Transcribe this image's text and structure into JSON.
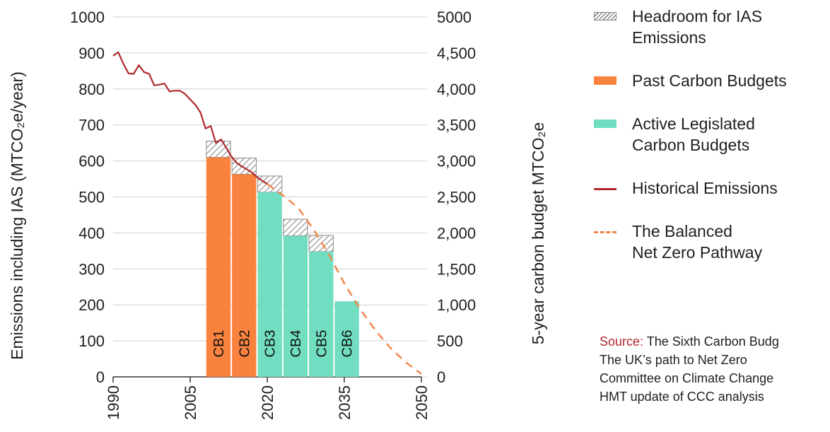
{
  "chart_data": {
    "type": "bar",
    "left_axis": {
      "label": "Emissions including IAS (MTCO₂e/year)",
      "ticks": [
        0,
        100,
        200,
        300,
        400,
        500,
        600,
        700,
        800,
        900,
        1000
      ],
      "range": [
        0,
        1000
      ]
    },
    "right_axis": {
      "label": "5-year carbon budget MTCO₂e",
      "tick_labels": [
        "0",
        "500",
        "1,000",
        "1,500",
        "2,000",
        "2,500",
        "3,000",
        "3,500",
        "4,000",
        "4,500",
        "5000"
      ],
      "range": [
        0,
        5000
      ]
    },
    "x_axis": {
      "range": [
        1990,
        2050
      ],
      "ticks": [
        "1990",
        "2005",
        "2020",
        "2035",
        "2050"
      ]
    },
    "bars": [
      {
        "label": "CB1",
        "start": 2008,
        "end": 2013,
        "budget_value": 610,
        "headroom_value": 655,
        "category": "past"
      },
      {
        "label": "CB2",
        "start": 2013,
        "end": 2018,
        "budget_value": 563,
        "headroom_value": 608,
        "category": "past"
      },
      {
        "label": "CB3",
        "start": 2018,
        "end": 2023,
        "budget_value": 513,
        "headroom_value": 558,
        "category": "active"
      },
      {
        "label": "CB4",
        "start": 2023,
        "end": 2028,
        "budget_value": 392,
        "headroom_value": 438,
        "category": "active"
      },
      {
        "label": "CB5",
        "start": 2028,
        "end": 2033,
        "budget_value": 348,
        "headroom_value": 393,
        "category": "active"
      },
      {
        "label": "CB6",
        "start": 2033,
        "end": 2038,
        "budget_value": 210,
        "headroom_value": 210,
        "category": "active"
      }
    ],
    "historical_emissions": [
      [
        1990,
        892
      ],
      [
        1991,
        902
      ],
      [
        1992,
        870
      ],
      [
        1993,
        843
      ],
      [
        1994,
        842
      ],
      [
        1995,
        866
      ],
      [
        1996,
        847
      ],
      [
        1997,
        842
      ],
      [
        1998,
        810
      ],
      [
        1999,
        812
      ],
      [
        2000,
        815
      ],
      [
        2001,
        793
      ],
      [
        2002,
        795
      ],
      [
        2003,
        795
      ],
      [
        2004,
        786
      ],
      [
        2005,
        771
      ],
      [
        2006,
        756
      ],
      [
        2007,
        735
      ],
      [
        2008,
        690
      ],
      [
        2009,
        697
      ],
      [
        2010,
        650
      ],
      [
        2011,
        660
      ],
      [
        2012,
        637
      ],
      [
        2013,
        613
      ],
      [
        2014,
        595
      ],
      [
        2015,
        585
      ],
      [
        2016,
        577
      ],
      [
        2017,
        568
      ],
      [
        2018,
        555
      ],
      [
        2019,
        545
      ],
      [
        2020,
        536
      ]
    ],
    "net_zero_pathway": [
      [
        2020,
        536
      ],
      [
        2023,
        505
      ],
      [
        2026,
        470
      ],
      [
        2029,
        410
      ],
      [
        2032,
        340
      ],
      [
        2035,
        260
      ],
      [
        2038,
        190
      ],
      [
        2041,
        130
      ],
      [
        2044,
        80
      ],
      [
        2047,
        40
      ],
      [
        2050,
        8
      ]
    ],
    "legend": [
      {
        "key": "headroom",
        "label": "Headroom for IAS\nEmissions"
      },
      {
        "key": "past",
        "label": "Past Carbon Budgets"
      },
      {
        "key": "active",
        "label": "Active Legislated\nCarbon Budgets"
      },
      {
        "key": "historical",
        "label": "Historical Emissions"
      },
      {
        "key": "pathway",
        "label": "The Balanced\nNet Zero Pathway"
      }
    ],
    "colors": {
      "past": "#f9823f",
      "active": "#71dec1",
      "historical": "#b0282f",
      "pathway": "#f2874a",
      "headroom": "#8a8a8a"
    }
  },
  "source": {
    "prefix": "Source:",
    "first_line": " The Sixth Carbon Budg",
    "lines": "The UK’s path to Net Zero\nCommittee on Climate Change\nHMT update of CCC analysis"
  }
}
